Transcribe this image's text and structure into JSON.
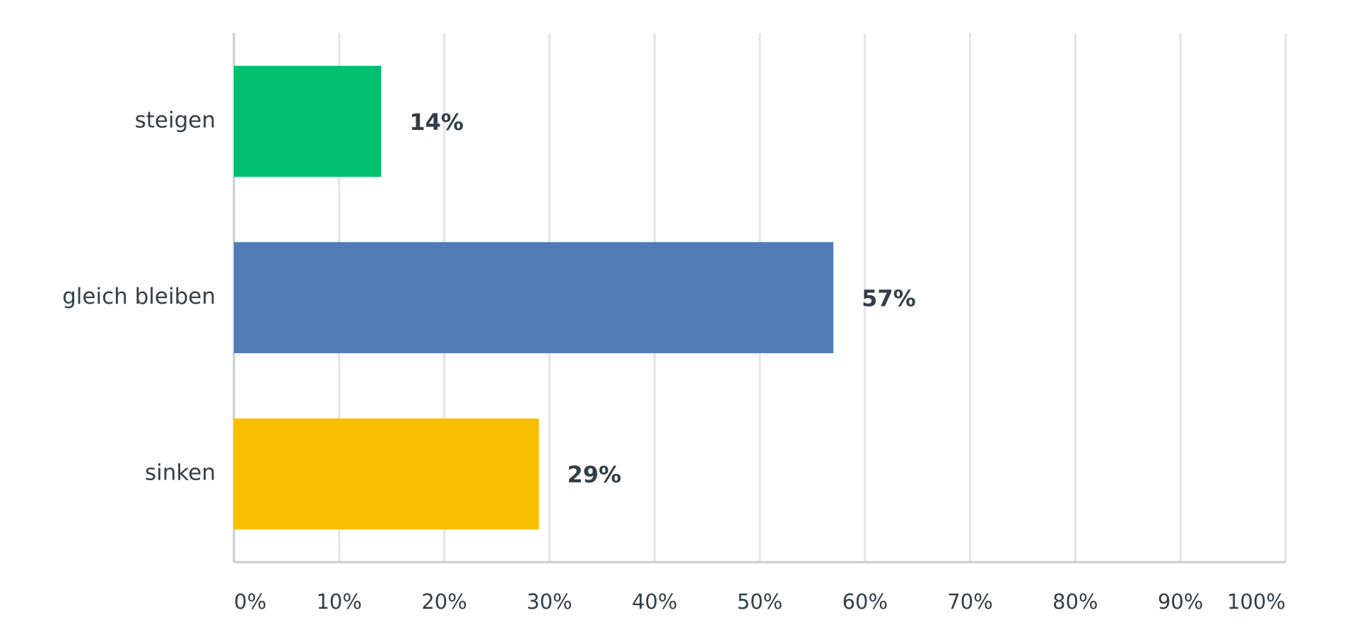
{
  "chart_data": {
    "type": "hbar",
    "categories": [
      "steigen",
      "gleich bleiben",
      "sinken"
    ],
    "values": [
      14,
      57,
      29
    ],
    "value_labels": [
      "14%",
      "57%",
      "29%"
    ],
    "colors": [
      "#00bf6f",
      "#507cb6",
      "#f9be00"
    ],
    "xlim": [
      0,
      100
    ],
    "xticks": [
      {
        "value": 0,
        "label": "0%"
      },
      {
        "value": 10,
        "label": "10%"
      },
      {
        "value": 20,
        "label": "20%"
      },
      {
        "value": 30,
        "label": "30%"
      },
      {
        "value": 40,
        "label": "40%"
      },
      {
        "value": 50,
        "label": "50%"
      },
      {
        "value": 60,
        "label": "60%"
      },
      {
        "value": 70,
        "label": "70%"
      },
      {
        "value": 80,
        "label": "80%"
      },
      {
        "value": 90,
        "label": "90%"
      },
      {
        "value": 100,
        "label": "100%"
      }
    ],
    "grid": true
  }
}
